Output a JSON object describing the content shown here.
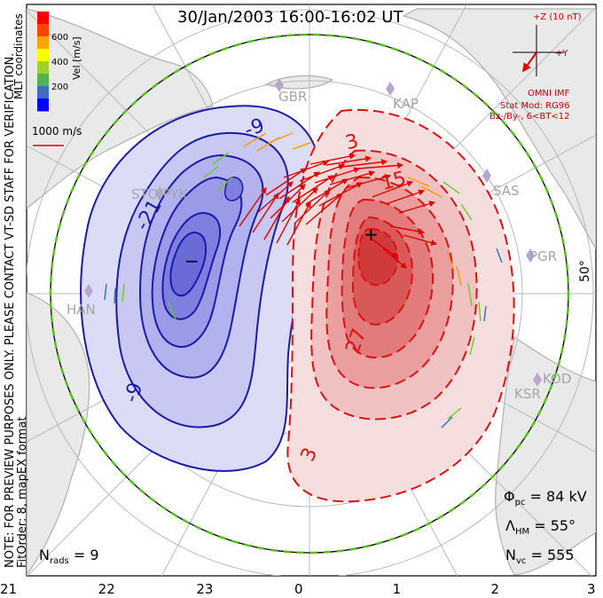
{
  "title": "30/Jan/2003 16:00-16:02 UT",
  "side_note": {
    "line1": "NOTE: FOR PREVIEW PURPOSES ONLY. PLEASE CONTACT VT-SD STAFF FOR VERIFICATION.",
    "line2": "FitOrder: 8, mapEX format"
  },
  "coordinate_label": "MLT coordinates",
  "colorbar": {
    "label": "Vel [m/s]",
    "ticks": [
      "600",
      "400",
      "200"
    ],
    "colors": [
      "#0000ff",
      "#3a6fc0",
      "#4fb64f",
      "#9fd22a",
      "#ffff00",
      "#ffa500",
      "#ff4400",
      "#ff0000"
    ]
  },
  "reference_vector": {
    "label": "1000 m/s"
  },
  "imf": {
    "axis_z": "+Z (10 nT)",
    "axis_y": "+Y",
    "source": "OMNI IMF",
    "model": "Stat Mod: RG96",
    "condition": "Bz-/By-, 6<BT<12"
  },
  "latitude_label": "50°",
  "stations": [
    "GBR",
    "KAP",
    "SAS",
    "PGR",
    "KOD",
    "KSR",
    "HAN",
    "STO/PYK"
  ],
  "contour_labels_negative": [
    "-9",
    "-21",
    "-9"
  ],
  "contour_labels_positive": [
    "3",
    "15",
    "27",
    "3"
  ],
  "extrema": {
    "min": "−",
    "max": "+"
  },
  "stats": {
    "phi_pc": {
      "symbol": "Φ",
      "sub": "pc",
      "value": "=  84 kV"
    },
    "lambda_hm": {
      "symbol": "Λ",
      "sub": "HM",
      "value": "=  55°"
    },
    "n_vc": {
      "symbol": "N",
      "sub": "vc",
      "value": "=  555"
    }
  },
  "n_rads": {
    "symbol": "N",
    "sub": "rads",
    "value": "=  9"
  },
  "mlt_ticks": [
    "21",
    "22",
    "23",
    "0",
    "1",
    "2",
    "3"
  ],
  "colors": {
    "negative": "#1a1aa8",
    "positive": "#dd1111",
    "hmb": "#55c21b",
    "land": "#bdbdbd",
    "grid": "#b9b9b9"
  }
}
